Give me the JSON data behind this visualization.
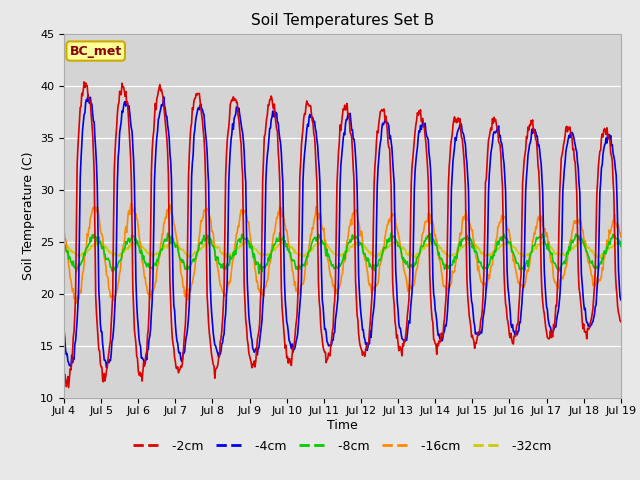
{
  "title": "Soil Temperatures Set B",
  "xlabel": "Time",
  "ylabel": "Soil Temperature (C)",
  "ylim": [
    10,
    45
  ],
  "xlim": [
    0,
    360
  ],
  "fig_width": 6.4,
  "fig_height": 4.8,
  "dpi": 100,
  "background_color": "#e8e8e8",
  "plot_bg_color": "#d4d4d4",
  "annotation_text": "BC_met",
  "annotation_color": "#8b0000",
  "annotation_bg": "#ffff99",
  "annotation_border": "#ccaa00",
  "series": {
    "-2cm": {
      "color": "#dd0000",
      "lw": 1.2
    },
    "-4cm": {
      "color": "#0000ee",
      "lw": 1.2
    },
    "-8cm": {
      "color": "#00cc00",
      "lw": 1.2
    },
    "-16cm": {
      "color": "#ff8800",
      "lw": 1.2
    },
    "-32cm": {
      "color": "#cccc00",
      "lw": 1.2
    }
  },
  "tick_labels": [
    "Jul 4",
    "Jul 5",
    "Jul 6",
    "Jul 7",
    "Jul 8",
    "Jul 9",
    "Jul 10",
    "Jul 11",
    "Jul 12",
    "Jul 13",
    "Jul 14",
    "Jul 15",
    "Jul 16",
    "Jul 17",
    "Jul 18",
    "Jul 19"
  ],
  "tick_positions": [
    0,
    24,
    48,
    72,
    96,
    120,
    144,
    168,
    192,
    216,
    240,
    264,
    288,
    312,
    336,
    360
  ],
  "yticks": [
    10,
    15,
    20,
    25,
    30,
    35,
    40,
    45
  ]
}
